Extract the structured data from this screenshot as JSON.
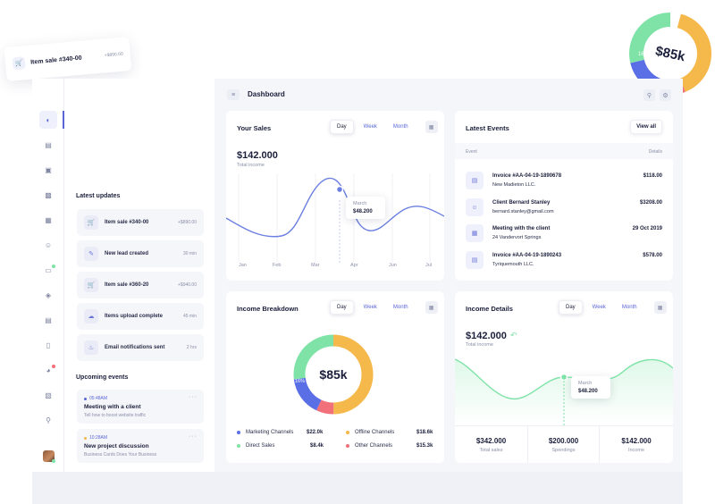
{
  "floating_toast": {
    "label": "Item sale #340-00",
    "amount": "+$890.00"
  },
  "floating_donut": {
    "center": "$85k",
    "pct": "16%"
  },
  "left_panel": {
    "updates_title": "Latest updates",
    "updates": [
      {
        "label": "Item sale #340-00",
        "meta": "+$890.00",
        "icon": "cart-icon"
      },
      {
        "label": "New lead created",
        "meta": "30 min",
        "icon": "lead-icon"
      },
      {
        "label": "Item sale #360-20",
        "meta": "+$940.00",
        "icon": "cart-icon"
      },
      {
        "label": "Items upload complete",
        "meta": "45 min",
        "icon": "cloud-upload-icon"
      },
      {
        "label": "Email notifications sent",
        "meta": "2 hrs",
        "icon": "bell-icon"
      }
    ],
    "events_title": "Upcoming events",
    "events": [
      {
        "time": "05:48AM",
        "title": "Meeting with a client",
        "sub": "Tell how to boost website traffic",
        "dot": "#5a66d6"
      },
      {
        "time": "10:28AM",
        "title": "New project discussion",
        "sub": "Business Cards Does Your Business",
        "dot": "#f5b84a"
      }
    ]
  },
  "topbar": {
    "title": "Dashboard"
  },
  "your_sales": {
    "title": "Your Sales",
    "tabs": [
      "Day",
      "Week",
      "Month"
    ],
    "total": "$142.000",
    "total_label": "Total income",
    "months": [
      "Jan",
      "Feb",
      "Mar",
      "Apr",
      "Jun",
      "Jul"
    ],
    "tooltip": {
      "month": "March",
      "value": "$48.200"
    }
  },
  "latest_events": {
    "title": "Latest Events",
    "view_all": "View all",
    "col_event": "Event",
    "col_details": "Details",
    "rows": [
      {
        "title": "Invoice #AA-04-19-1890678",
        "sub": "New Madieton LLC.",
        "detail": "$118.00"
      },
      {
        "title": "Client Bernard Stanley",
        "sub": "bernard.stanley@gmail.com",
        "detail": "$3208.00"
      },
      {
        "title": "Meeting with the client",
        "sub": "24 Vandervort Springs",
        "detail": "29 Oct 2019"
      },
      {
        "title": "Invoice #AA-04-19-1890243",
        "sub": "Tyriquemouth LLC.",
        "detail": "$578.00"
      }
    ]
  },
  "income_breakdown": {
    "title": "Income Breakdown",
    "tabs": [
      "Day",
      "Week",
      "Month"
    ],
    "center": "$85k",
    "pct": "16%",
    "legend": [
      {
        "name": "Marketing Channels",
        "value": "$22.0k",
        "color": "#5a6ee6"
      },
      {
        "name": "Offline Channels",
        "value": "$18.6k",
        "color": "#f5b84a"
      },
      {
        "name": "Direct Sales",
        "value": "$8.4k",
        "color": "#7fe3a8"
      },
      {
        "name": "Other Channels",
        "value": "$15.3k",
        "color": "#f2707a"
      }
    ]
  },
  "income_details": {
    "title": "Income Details",
    "tabs": [
      "Day",
      "Week",
      "Month"
    ],
    "total": "$142.000",
    "total_label": "Total income",
    "tooltip": {
      "month": "March",
      "value": "$48.200"
    },
    "stats": [
      {
        "value": "$342.000",
        "label": "Total sales"
      },
      {
        "value": "$200.000",
        "label": "Spendings"
      },
      {
        "value": "$142.000",
        "label": "Income"
      }
    ]
  },
  "colors": {
    "accent": "#5a66d6",
    "line_blue": "#6b7fe0",
    "line_green": "#7fe3a8",
    "bg": "#f5f6fa"
  }
}
